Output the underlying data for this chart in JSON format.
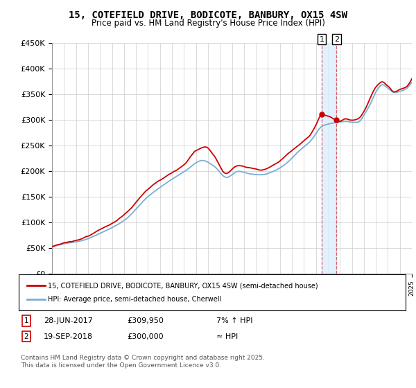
{
  "title": "15, COTEFIELD DRIVE, BODICOTE, BANBURY, OX15 4SW",
  "subtitle": "Price paid vs. HM Land Registry's House Price Index (HPI)",
  "ylabel_ticks": [
    "£0",
    "£50K",
    "£100K",
    "£150K",
    "£200K",
    "£250K",
    "£300K",
    "£350K",
    "£400K",
    "£450K"
  ],
  "ytick_values": [
    0,
    50000,
    100000,
    150000,
    200000,
    250000,
    300000,
    350000,
    400000,
    450000
  ],
  "ylim": [
    0,
    450000
  ],
  "x_start_year": 1995,
  "x_end_year": 2025,
  "hpi_color": "#7aadd4",
  "price_color": "#cc0000",
  "marker1_year": 2017.49,
  "marker1_price": 309950,
  "marker2_year": 2018.72,
  "marker2_price": 300000,
  "legend_line1": "15, COTEFIELD DRIVE, BODICOTE, BANBURY, OX15 4SW (semi-detached house)",
  "legend_line2": "HPI: Average price, semi-detached house, Cherwell",
  "background_color": "#ffffff",
  "grid_color": "#cccccc",
  "band_color": "#ddeeff"
}
